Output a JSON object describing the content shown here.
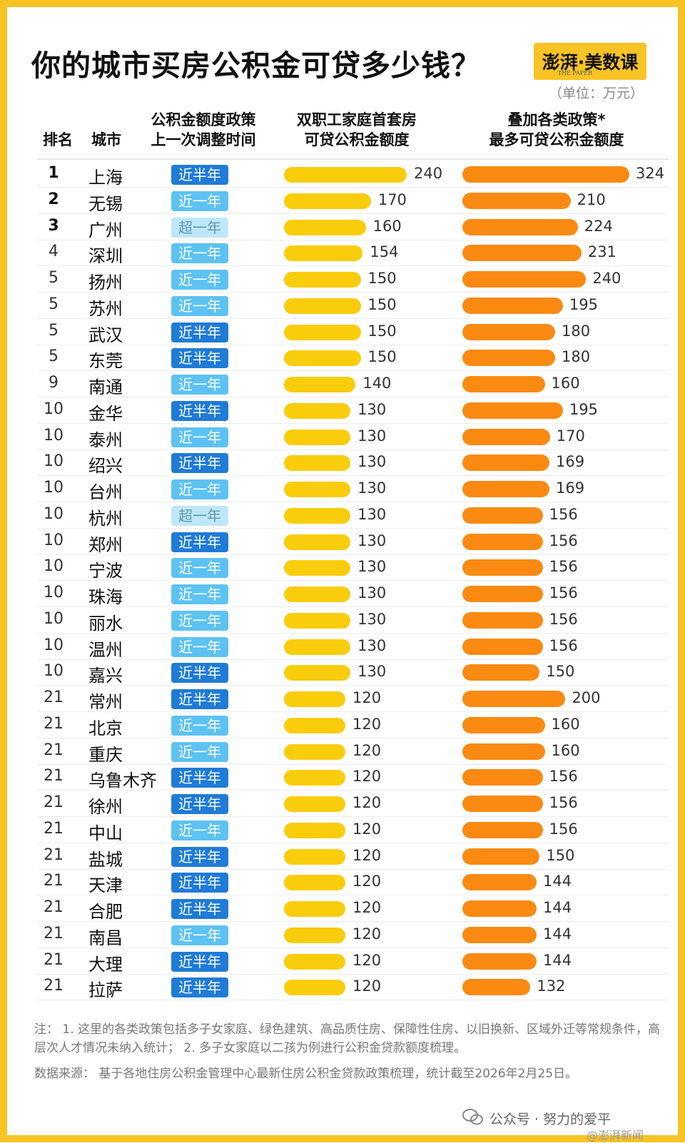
{
  "title": "你的城市买房公积金可贷多少钱？",
  "logo_text": "澎湃·美数课",
  "logo_sub": "THE PAPER",
  "unit": "（单位：万元）",
  "headers": {
    "rank": "排名",
    "city": "城市",
    "policy_line1": "公积金额度政策",
    "policy_line2": "上一次调整时间",
    "base_line1": "双职工家庭首套房",
    "base_line2": "可贷公积金额度",
    "max_line1": "叠加各类政策*",
    "max_line2": "最多可贷公积金额度"
  },
  "chart_data": {
    "type": "bar",
    "series": [
      {
        "name": "双职工家庭首套房可贷公积金额度",
        "color": "#f9cd0c"
      },
      {
        "name": "叠加各类政策*最多可贷公积金额度",
        "color": "#fa8a12"
      }
    ],
    "badge_colors": {
      "近半年": "#1f7bd6",
      "近一年": "#5dc2f2",
      "超一年": "#bfe7f7"
    },
    "rows": [
      {
        "rank": "1",
        "city": "上海",
        "policy": "近半年",
        "base": 240,
        "max": 324
      },
      {
        "rank": "2",
        "city": "无锡",
        "policy": "近一年",
        "base": 170,
        "max": 210
      },
      {
        "rank": "3",
        "city": "广州",
        "policy": "超一年",
        "base": 160,
        "max": 224
      },
      {
        "rank": "4",
        "city": "深圳",
        "policy": "近一年",
        "base": 154,
        "max": 231
      },
      {
        "rank": "5",
        "city": "扬州",
        "policy": "近一年",
        "base": 150,
        "max": 240
      },
      {
        "rank": "5",
        "city": "苏州",
        "policy": "近一年",
        "base": 150,
        "max": 195
      },
      {
        "rank": "5",
        "city": "武汉",
        "policy": "近半年",
        "base": 150,
        "max": 180
      },
      {
        "rank": "5",
        "city": "东莞",
        "policy": "近半年",
        "base": 150,
        "max": 180
      },
      {
        "rank": "9",
        "city": "南通",
        "policy": "近一年",
        "base": 140,
        "max": 160
      },
      {
        "rank": "10",
        "city": "金华",
        "policy": "近半年",
        "base": 130,
        "max": 195
      },
      {
        "rank": "10",
        "city": "泰州",
        "policy": "近一年",
        "base": 130,
        "max": 170
      },
      {
        "rank": "10",
        "city": "绍兴",
        "policy": "近半年",
        "base": 130,
        "max": 169
      },
      {
        "rank": "10",
        "city": "台州",
        "policy": "近一年",
        "base": 130,
        "max": 169
      },
      {
        "rank": "10",
        "city": "杭州",
        "policy": "超一年",
        "base": 130,
        "max": 156
      },
      {
        "rank": "10",
        "city": "郑州",
        "policy": "近半年",
        "base": 130,
        "max": 156
      },
      {
        "rank": "10",
        "city": "宁波",
        "policy": "近一年",
        "base": 130,
        "max": 156
      },
      {
        "rank": "10",
        "city": "珠海",
        "policy": "近一年",
        "base": 130,
        "max": 156
      },
      {
        "rank": "10",
        "city": "丽水",
        "policy": "近一年",
        "base": 130,
        "max": 156
      },
      {
        "rank": "10",
        "city": "温州",
        "policy": "近一年",
        "base": 130,
        "max": 156
      },
      {
        "rank": "10",
        "city": "嘉兴",
        "policy": "近半年",
        "base": 130,
        "max": 150
      },
      {
        "rank": "21",
        "city": "常州",
        "policy": "近半年",
        "base": 120,
        "max": 200
      },
      {
        "rank": "21",
        "city": "北京",
        "policy": "近一年",
        "base": 120,
        "max": 160
      },
      {
        "rank": "21",
        "city": "重庆",
        "policy": "近一年",
        "base": 120,
        "max": 160
      },
      {
        "rank": "21",
        "city": "乌鲁木齐",
        "policy": "近半年",
        "base": 120,
        "max": 156
      },
      {
        "rank": "21",
        "city": "徐州",
        "policy": "近半年",
        "base": 120,
        "max": 156
      },
      {
        "rank": "21",
        "city": "中山",
        "policy": "近一年",
        "base": 120,
        "max": 156
      },
      {
        "rank": "21",
        "city": "盐城",
        "policy": "近半年",
        "base": 120,
        "max": 150
      },
      {
        "rank": "21",
        "city": "天津",
        "policy": "近半年",
        "base": 120,
        "max": 144
      },
      {
        "rank": "21",
        "city": "合肥",
        "policy": "近半年",
        "base": 120,
        "max": 144
      },
      {
        "rank": "21",
        "city": "南昌",
        "policy": "近一年",
        "base": 120,
        "max": 144
      },
      {
        "rank": "21",
        "city": "大理",
        "policy": "近半年",
        "base": 120,
        "max": 144
      },
      {
        "rank": "21",
        "city": "拉萨",
        "policy": "近半年",
        "base": 120,
        "max": 132
      }
    ]
  },
  "notes": {
    "note1": "注： 1. 这里的各类政策包括多子女家庭、绿色建筑、高品质住房、保障性住房、以旧换新、区域外迁等常规条件，高层次人才情况未纳入统计； 2. 多子女家庭以二孩为例进行公积金贷款额度梳理。",
    "source": "数据来源： 基于各地住房公积金管理中心最新住房公积金贷款政策梳理，统计截至2026年2月25日。"
  },
  "footer": {
    "wechat": "公众号 · 努力的爱平",
    "weibo": "@澎湃新闻"
  }
}
